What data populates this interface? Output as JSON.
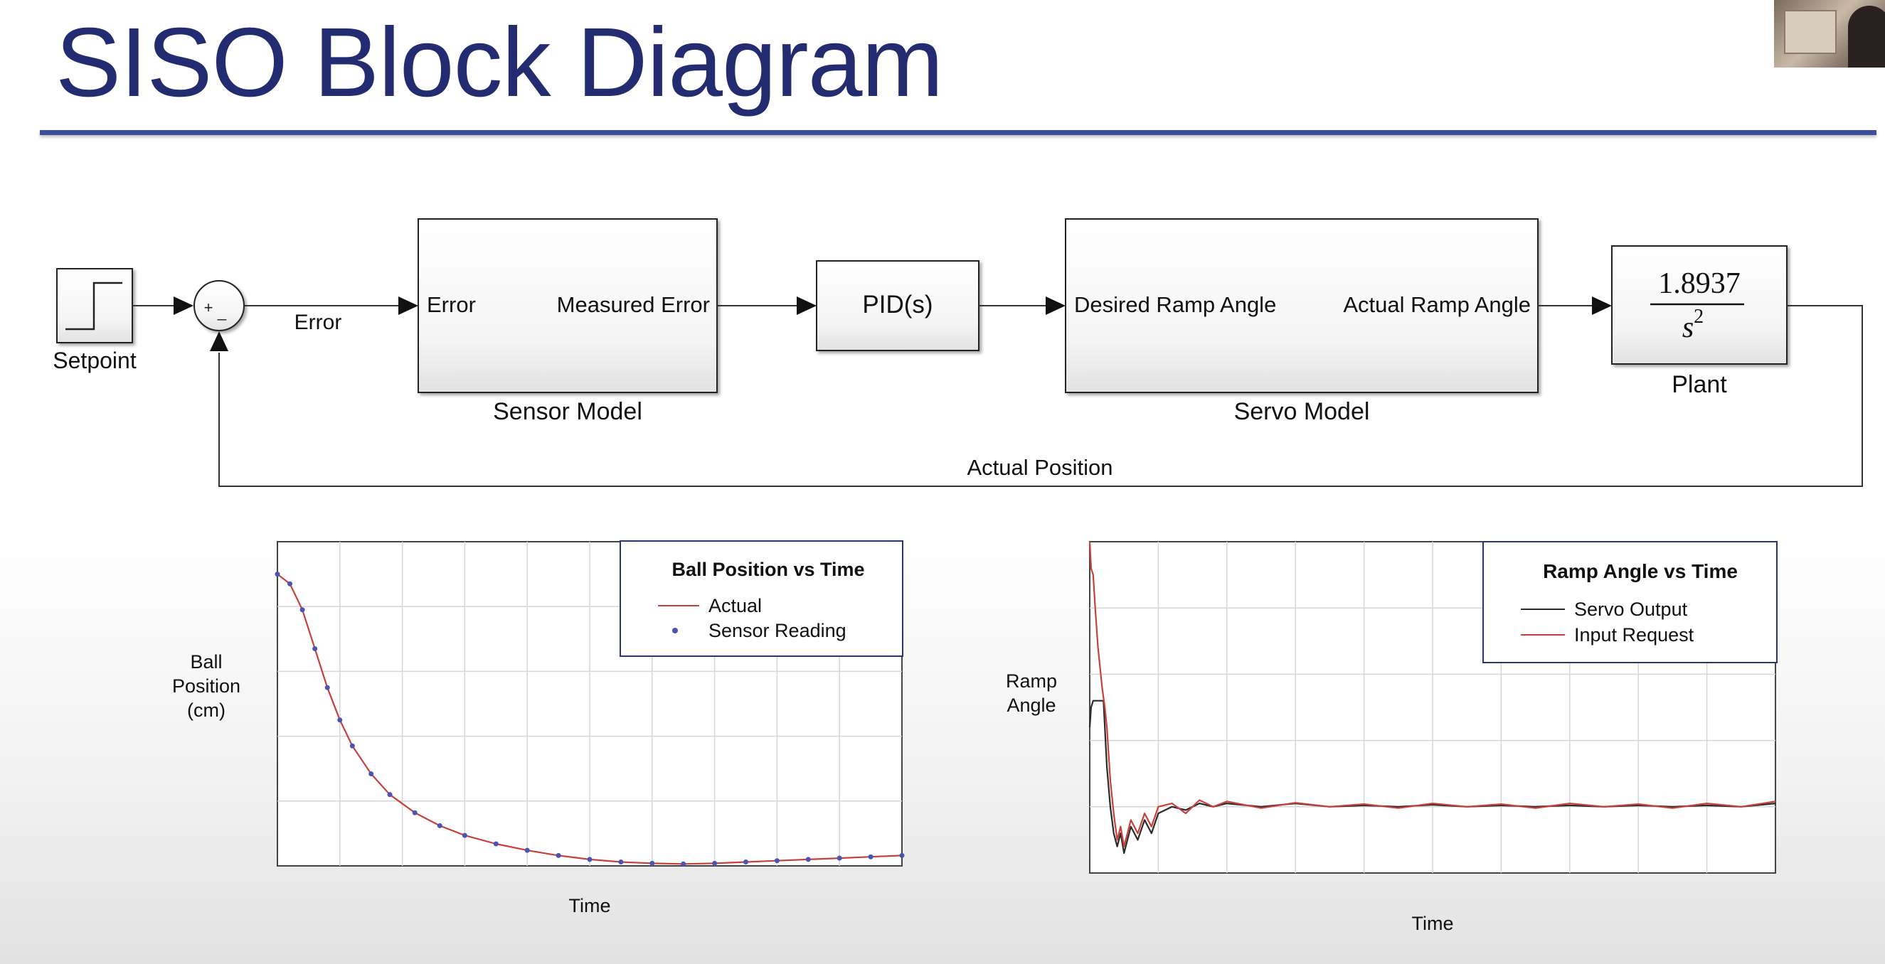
{
  "slide": {
    "title": "SISO Block Diagram"
  },
  "diagram": {
    "setpoint_label": "Setpoint",
    "summer_plus": "+",
    "summer_minus": "_",
    "error_signal_label": "Error",
    "sensor_model": {
      "name": "Sensor Model",
      "input_port": "Error",
      "output_port": "Measured Error"
    },
    "pid_label": "PID(s)",
    "servo_model": {
      "name": "Servo Model",
      "input_port": "Desired Ramp Angle",
      "output_port": "Actual Ramp Angle"
    },
    "plant": {
      "name": "Plant",
      "numerator": "1.8937",
      "denominator_base": "s",
      "denominator_exp": "2"
    },
    "feedback_label": "Actual Position"
  },
  "chart_data": [
    {
      "type": "line",
      "title": "Ball Position vs Time",
      "xlabel": "Time",
      "ylabel": "Ball Position (cm)",
      "ylabel_lines": [
        "Ball",
        "Position",
        "(cm)"
      ],
      "grid": true,
      "legend": "top-right",
      "xlim": [
        0,
        10
      ],
      "ylim": [
        0,
        5
      ],
      "series": [
        {
          "name": "Actual",
          "color": "#c8403a",
          "style": "line",
          "x": [
            0,
            0.2,
            0.4,
            0.6,
            0.8,
            1.0,
            1.2,
            1.5,
            1.8,
            2.2,
            2.6,
            3.0,
            3.5,
            4.0,
            4.5,
            5.0,
            5.5,
            6.0,
            6.5,
            7.0,
            7.5,
            8.0,
            8.5,
            9.0,
            9.5,
            10.0
          ],
          "values": [
            4.5,
            4.35,
            3.95,
            3.35,
            2.75,
            2.25,
            1.85,
            1.42,
            1.1,
            0.82,
            0.62,
            0.47,
            0.34,
            0.24,
            0.16,
            0.1,
            0.06,
            0.04,
            0.03,
            0.04,
            0.06,
            0.08,
            0.1,
            0.12,
            0.14,
            0.16
          ]
        },
        {
          "name": "Sensor Reading",
          "color": "#4a55b0",
          "style": "dots",
          "x": [
            0,
            0.2,
            0.4,
            0.6,
            0.8,
            1.0,
            1.2,
            1.5,
            1.8,
            2.2,
            2.6,
            3.0,
            3.5,
            4.0,
            4.5,
            5.0,
            5.5,
            6.0,
            6.5,
            7.0,
            7.5,
            8.0,
            8.5,
            9.0,
            9.5,
            10.0
          ],
          "values": [
            4.5,
            4.35,
            3.95,
            3.35,
            2.75,
            2.25,
            1.85,
            1.42,
            1.1,
            0.82,
            0.62,
            0.47,
            0.34,
            0.24,
            0.16,
            0.1,
            0.06,
            0.04,
            0.03,
            0.04,
            0.06,
            0.08,
            0.1,
            0.12,
            0.14,
            0.16
          ]
        }
      ]
    },
    {
      "type": "line",
      "title": "Ramp Angle vs Time",
      "xlabel": "Time",
      "ylabel": "Ramp Angle",
      "ylabel_lines": [
        "Ramp",
        "Angle"
      ],
      "grid": true,
      "legend": "top-right",
      "xlim": [
        0,
        10
      ],
      "ylim": [
        0,
        5
      ],
      "series": [
        {
          "name": "Servo Output",
          "color": "#2a2a2a",
          "x": [
            0,
            0.02,
            0.05,
            0.1,
            0.2,
            0.25,
            0.3,
            0.35,
            0.4,
            0.45,
            0.5,
            0.55,
            0.6,
            0.7,
            0.8,
            0.9,
            1.0,
            1.2,
            1.4,
            1.6,
            1.8,
            2.0,
            2.5,
            3.0,
            3.5,
            4.0,
            4.5,
            5.0,
            5.5,
            6.0,
            6.5,
            7.0,
            7.5,
            8.0,
            8.5,
            9.0,
            9.5,
            10.0
          ],
          "values": [
            2.2,
            2.5,
            2.6,
            2.6,
            2.6,
            1.6,
            1.0,
            0.6,
            0.4,
            0.6,
            0.3,
            0.5,
            0.7,
            0.5,
            0.8,
            0.6,
            0.9,
            1.0,
            0.95,
            1.05,
            1.0,
            1.05,
            1.0,
            1.05,
            1.0,
            1.02,
            1.0,
            1.03,
            1.0,
            1.02,
            1.0,
            1.02,
            1.0,
            1.02,
            1.0,
            1.02,
            1.0,
            1.05
          ]
        },
        {
          "name": "Input Request",
          "color": "#c8403a",
          "x": [
            0,
            0.02,
            0.05,
            0.08,
            0.12,
            0.18,
            0.22,
            0.25,
            0.3,
            0.35,
            0.4,
            0.45,
            0.5,
            0.55,
            0.6,
            0.7,
            0.8,
            0.9,
            1.0,
            1.2,
            1.4,
            1.6,
            1.8,
            2.0,
            2.5,
            3.0,
            3.5,
            4.0,
            4.5,
            5.0,
            5.5,
            6.0,
            6.5,
            7.0,
            7.5,
            8.0,
            8.5,
            9.0,
            9.5,
            10.0
          ],
          "values": [
            5.0,
            4.6,
            4.5,
            4.0,
            3.4,
            2.8,
            2.5,
            2.2,
            1.4,
            0.9,
            0.5,
            0.7,
            0.4,
            0.6,
            0.8,
            0.6,
            0.9,
            0.7,
            1.0,
            1.05,
            0.9,
            1.1,
            1.0,
            1.08,
            0.98,
            1.06,
            1.0,
            1.04,
            0.98,
            1.05,
            1.0,
            1.04,
            0.98,
            1.05,
            1.0,
            1.04,
            0.98,
            1.05,
            1.0,
            1.08
          ]
        }
      ]
    }
  ]
}
